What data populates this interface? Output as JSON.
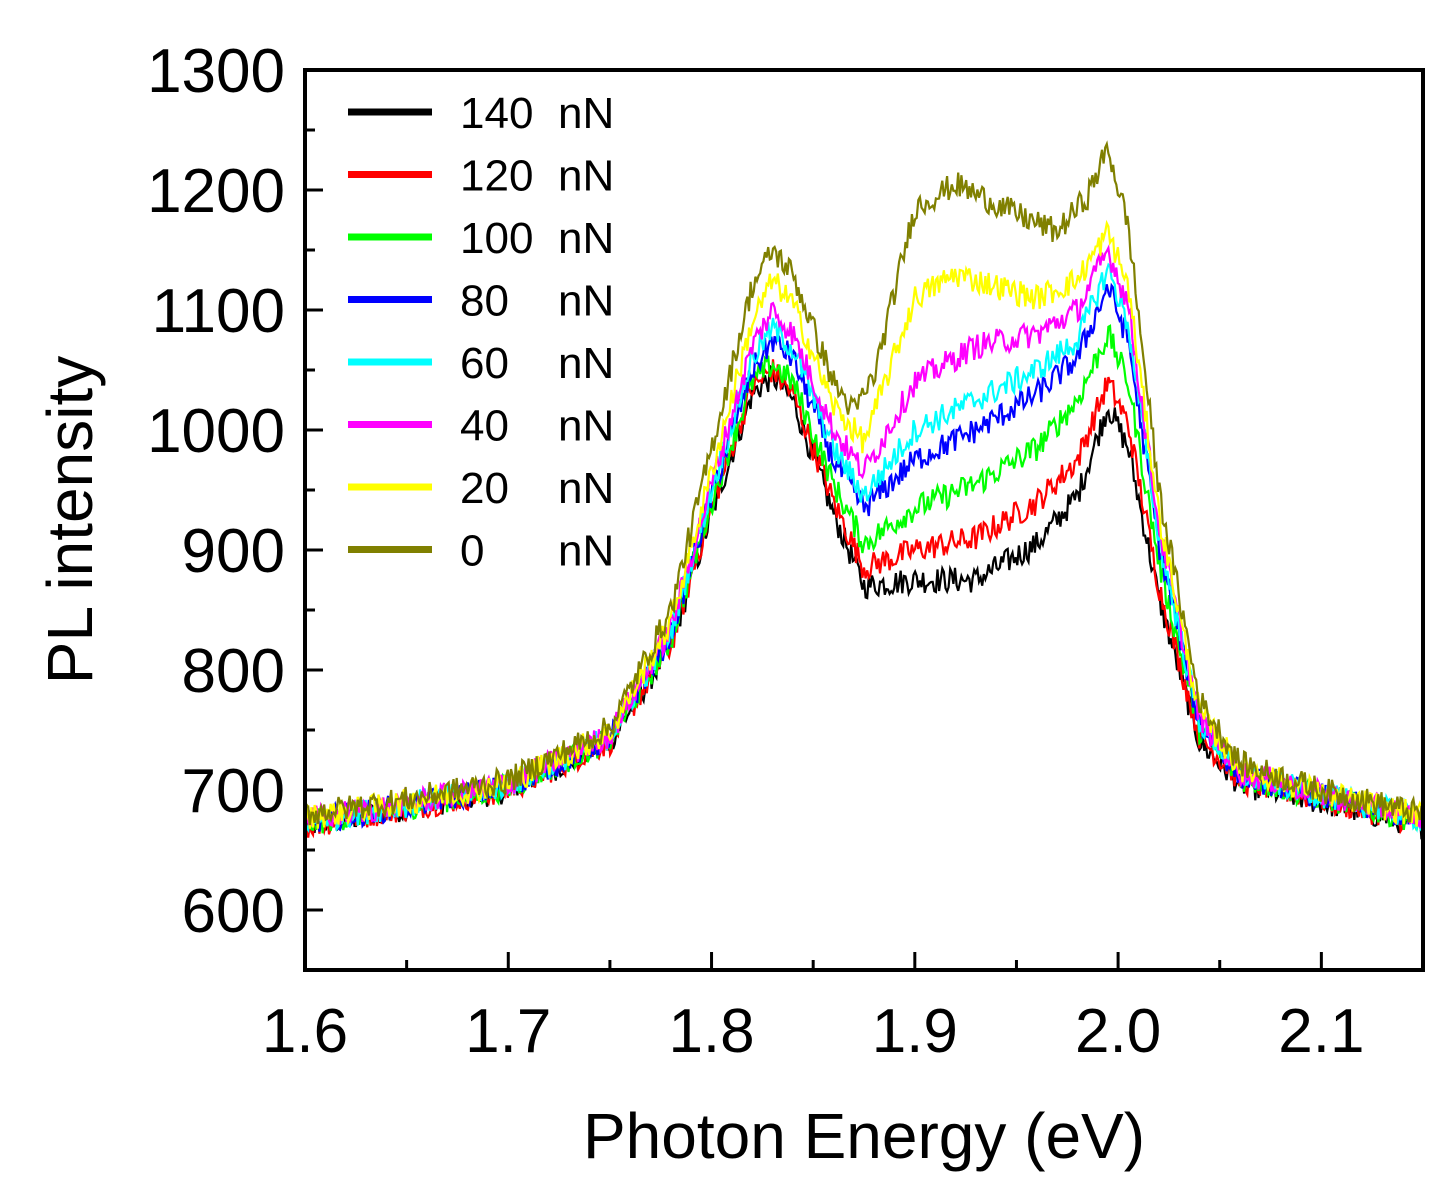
{
  "chart_data": {
    "type": "line",
    "title": "",
    "xlabel": "Photon Energy (eV)",
    "ylabel": "PL intensity",
    "xlim": [
      1.6,
      2.15
    ],
    "ylim": [
      550,
      1300
    ],
    "x_ticks": [
      1.6,
      1.7,
      1.8,
      1.9,
      2.0,
      2.1
    ],
    "x_tick_labels": [
      "1.6",
      "1.7",
      "1.8",
      "1.9",
      "2.0",
      "2.1"
    ],
    "y_ticks": [
      600,
      700,
      800,
      900,
      1000,
      1100,
      1200,
      1300
    ],
    "y_tick_labels": [
      "600",
      "700",
      "800",
      "900",
      "1000",
      "1100",
      "1200",
      "1300"
    ],
    "legend_position": "top-left",
    "grid": false,
    "series": [
      {
        "name": "140",
        "unit": "nN",
        "color": "#000000",
        "points": [
          [
            1.6,
            670
          ],
          [
            1.65,
            685
          ],
          [
            1.7,
            700
          ],
          [
            1.75,
            740
          ],
          [
            1.78,
            820
          ],
          [
            1.8,
            930
          ],
          [
            1.82,
            1030
          ],
          [
            1.83,
            1045
          ],
          [
            1.84,
            1025
          ],
          [
            1.86,
            930
          ],
          [
            1.875,
            870
          ],
          [
            1.9,
            875
          ],
          [
            1.93,
            875
          ],
          [
            1.96,
            905
          ],
          [
            1.98,
            945
          ],
          [
            1.995,
            1020
          ],
          [
            2.005,
            985
          ],
          [
            2.02,
            860
          ],
          [
            2.04,
            740
          ],
          [
            2.06,
            705
          ],
          [
            2.1,
            690
          ],
          [
            2.15,
            670
          ]
        ]
      },
      {
        "name": "120",
        "unit": "nN",
        "color": "#ff0000",
        "points": [
          [
            1.6,
            670
          ],
          [
            1.65,
            685
          ],
          [
            1.7,
            700
          ],
          [
            1.75,
            740
          ],
          [
            1.78,
            820
          ],
          [
            1.8,
            935
          ],
          [
            1.82,
            1035
          ],
          [
            1.83,
            1050
          ],
          [
            1.84,
            1030
          ],
          [
            1.86,
            940
          ],
          [
            1.875,
            885
          ],
          [
            1.9,
            900
          ],
          [
            1.93,
            910
          ],
          [
            1.96,
            940
          ],
          [
            1.98,
            975
          ],
          [
            1.995,
            1040
          ],
          [
            2.005,
            1005
          ],
          [
            2.02,
            870
          ],
          [
            2.04,
            745
          ],
          [
            2.06,
            708
          ],
          [
            2.1,
            692
          ],
          [
            2.15,
            672
          ]
        ]
      },
      {
        "name": "100",
        "unit": "nN",
        "color": "#00ff00",
        "points": [
          [
            1.6,
            672
          ],
          [
            1.65,
            686
          ],
          [
            1.7,
            702
          ],
          [
            1.75,
            742
          ],
          [
            1.78,
            825
          ],
          [
            1.8,
            940
          ],
          [
            1.82,
            1040
          ],
          [
            1.83,
            1055
          ],
          [
            1.84,
            1040
          ],
          [
            1.86,
            955
          ],
          [
            1.875,
            905
          ],
          [
            1.9,
            935
          ],
          [
            1.93,
            955
          ],
          [
            1.96,
            985
          ],
          [
            1.98,
            1025
          ],
          [
            1.995,
            1080
          ],
          [
            2.005,
            1040
          ],
          [
            2.02,
            890
          ],
          [
            2.04,
            750
          ],
          [
            2.06,
            710
          ],
          [
            2.1,
            694
          ],
          [
            2.15,
            674
          ]
        ]
      },
      {
        "name": "80",
        "unit": "nN",
        "color": "#0000ff",
        "points": [
          [
            1.6,
            673
          ],
          [
            1.65,
            687
          ],
          [
            1.7,
            703
          ],
          [
            1.75,
            744
          ],
          [
            1.78,
            830
          ],
          [
            1.8,
            945
          ],
          [
            1.82,
            1050
          ],
          [
            1.83,
            1075
          ],
          [
            1.84,
            1060
          ],
          [
            1.86,
            975
          ],
          [
            1.875,
            935
          ],
          [
            1.9,
            975
          ],
          [
            1.93,
            1000
          ],
          [
            1.96,
            1030
          ],
          [
            1.98,
            1060
          ],
          [
            1.995,
            1120
          ],
          [
            2.005,
            1075
          ],
          [
            2.02,
            905
          ],
          [
            2.04,
            755
          ],
          [
            2.06,
            712
          ],
          [
            2.1,
            695
          ],
          [
            2.15,
            675
          ]
        ]
      },
      {
        "name": "60",
        "unit": "nN",
        "color": "#00ffff",
        "points": [
          [
            1.6,
            674
          ],
          [
            1.65,
            688
          ],
          [
            1.7,
            704
          ],
          [
            1.75,
            745
          ],
          [
            1.78,
            832
          ],
          [
            1.8,
            950
          ],
          [
            1.82,
            1060
          ],
          [
            1.83,
            1085
          ],
          [
            1.84,
            1068
          ],
          [
            1.86,
            985
          ],
          [
            1.875,
            945
          ],
          [
            1.9,
            1000
          ],
          [
            1.93,
            1025
          ],
          [
            1.96,
            1050
          ],
          [
            1.98,
            1075
          ],
          [
            1.995,
            1135
          ],
          [
            2.005,
            1088
          ],
          [
            2.02,
            910
          ],
          [
            2.04,
            757
          ],
          [
            2.06,
            713
          ],
          [
            2.1,
            696
          ],
          [
            2.15,
            676
          ]
        ]
      },
      {
        "name": "40",
        "unit": "nN",
        "color": "#ff00ff",
        "points": [
          [
            1.6,
            675
          ],
          [
            1.65,
            689
          ],
          [
            1.7,
            705
          ],
          [
            1.75,
            746
          ],
          [
            1.78,
            835
          ],
          [
            1.8,
            955
          ],
          [
            1.82,
            1070
          ],
          [
            1.83,
            1100
          ],
          [
            1.84,
            1080
          ],
          [
            1.86,
            1000
          ],
          [
            1.875,
            965
          ],
          [
            1.9,
            1040
          ],
          [
            1.93,
            1070
          ],
          [
            1.96,
            1080
          ],
          [
            1.98,
            1100
          ],
          [
            1.995,
            1150
          ],
          [
            2.005,
            1105
          ],
          [
            2.02,
            920
          ],
          [
            2.04,
            760
          ],
          [
            2.06,
            715
          ],
          [
            2.1,
            697
          ],
          [
            2.15,
            677
          ]
        ]
      },
      {
        "name": "20",
        "unit": "nN",
        "color": "#ffff00",
        "points": [
          [
            1.6,
            677
          ],
          [
            1.65,
            690
          ],
          [
            1.7,
            706
          ],
          [
            1.75,
            748
          ],
          [
            1.78,
            840
          ],
          [
            1.8,
            965
          ],
          [
            1.82,
            1090
          ],
          [
            1.83,
            1125
          ],
          [
            1.84,
            1105
          ],
          [
            1.86,
            1020
          ],
          [
            1.875,
            990
          ],
          [
            1.9,
            1110
          ],
          [
            1.92,
            1130
          ],
          [
            1.96,
            1110
          ],
          [
            1.98,
            1125
          ],
          [
            1.995,
            1165
          ],
          [
            2.005,
            1120
          ],
          [
            2.02,
            930
          ],
          [
            2.04,
            765
          ],
          [
            2.06,
            718
          ],
          [
            2.1,
            698
          ],
          [
            2.15,
            678
          ]
        ]
      },
      {
        "name": "0",
        "unit": "nN",
        "color": "#808000",
        "points": [
          [
            1.6,
            680
          ],
          [
            1.65,
            692
          ],
          [
            1.7,
            708
          ],
          [
            1.75,
            752
          ],
          [
            1.78,
            850
          ],
          [
            1.8,
            985
          ],
          [
            1.82,
            1120
          ],
          [
            1.83,
            1150
          ],
          [
            1.84,
            1130
          ],
          [
            1.86,
            1040
          ],
          [
            1.87,
            1015
          ],
          [
            1.88,
            1045
          ],
          [
            1.9,
            1185
          ],
          [
            1.92,
            1205
          ],
          [
            1.95,
            1180
          ],
          [
            1.97,
            1165
          ],
          [
            1.985,
            1195
          ],
          [
            1.995,
            1235
          ],
          [
            2.005,
            1170
          ],
          [
            2.02,
            950
          ],
          [
            2.04,
            775
          ],
          [
            2.06,
            722
          ],
          [
            2.1,
            700
          ],
          [
            2.15,
            680
          ]
        ]
      }
    ]
  }
}
